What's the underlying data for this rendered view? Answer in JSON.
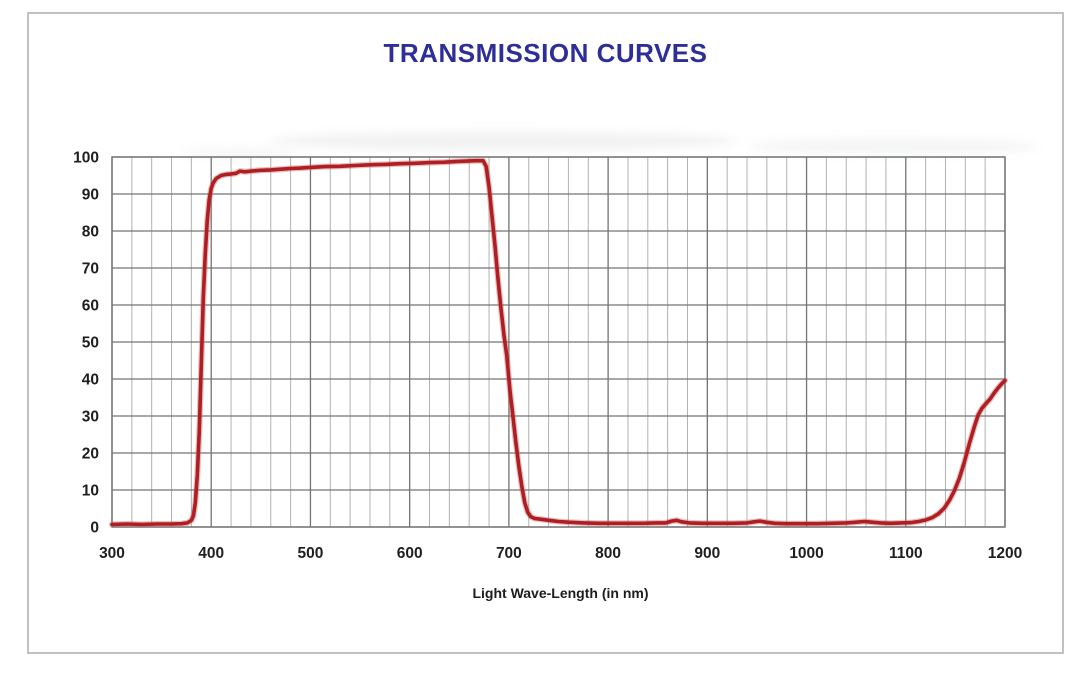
{
  "chart_data": {
    "type": "line",
    "title": "TRANSMISSION CURVES",
    "xlabel": "Light Wave-Length (in nm)",
    "ylabel": "",
    "xlim": [
      300,
      1200
    ],
    "ylim": [
      0,
      100
    ],
    "x_ticks": [
      300,
      400,
      500,
      600,
      700,
      800,
      900,
      1000,
      1100,
      1200
    ],
    "y_ticks": [
      0,
      10,
      20,
      30,
      40,
      50,
      60,
      70,
      80,
      90,
      100
    ],
    "x_minor_step": 20,
    "grid": "on",
    "legend": "none",
    "series": [
      {
        "name": "",
        "color": "#AF1E22",
        "points": [
          [
            300,
            0.7
          ],
          [
            315,
            0.8
          ],
          [
            330,
            0.7
          ],
          [
            345,
            0.8
          ],
          [
            360,
            0.8
          ],
          [
            370,
            0.9
          ],
          [
            376,
            1.1
          ],
          [
            380,
            1.8
          ],
          [
            382,
            3.0
          ],
          [
            384,
            6.5
          ],
          [
            386,
            14
          ],
          [
            388,
            26
          ],
          [
            390,
            44
          ],
          [
            392,
            62
          ],
          [
            394,
            74
          ],
          [
            396,
            83
          ],
          [
            398,
            88.5
          ],
          [
            400,
            91.5
          ],
          [
            402,
            93
          ],
          [
            405,
            94.2
          ],
          [
            410,
            95
          ],
          [
            415,
            95.3
          ],
          [
            420,
            95.4
          ],
          [
            425,
            95.6
          ],
          [
            429,
            96.2
          ],
          [
            434,
            96.0
          ],
          [
            440,
            96.2
          ],
          [
            450,
            96.4
          ],
          [
            460,
            96.5
          ],
          [
            470,
            96.7
          ],
          [
            480,
            96.9
          ],
          [
            490,
            97.0
          ],
          [
            500,
            97.2
          ],
          [
            515,
            97.4
          ],
          [
            530,
            97.5
          ],
          [
            545,
            97.7
          ],
          [
            560,
            97.9
          ],
          [
            575,
            98.0
          ],
          [
            590,
            98.2
          ],
          [
            605,
            98.3
          ],
          [
            620,
            98.5
          ],
          [
            635,
            98.6
          ],
          [
            648,
            98.8
          ],
          [
            658,
            98.9
          ],
          [
            666,
            99.0
          ],
          [
            672,
            99.0
          ],
          [
            674,
            99.0
          ],
          [
            677,
            97.5
          ],
          [
            680,
            92
          ],
          [
            683,
            84
          ],
          [
            686,
            76
          ],
          [
            689,
            67
          ],
          [
            692,
            59
          ],
          [
            695,
            52
          ],
          [
            698,
            46
          ],
          [
            701,
            37
          ],
          [
            704,
            30
          ],
          [
            707,
            23
          ],
          [
            710,
            16.5
          ],
          [
            713,
            11
          ],
          [
            716,
            6.5
          ],
          [
            719,
            4.0
          ],
          [
            722,
            2.8
          ],
          [
            726,
            2.3
          ],
          [
            732,
            2.1
          ],
          [
            740,
            1.8
          ],
          [
            750,
            1.5
          ],
          [
            760,
            1.3
          ],
          [
            775,
            1.1
          ],
          [
            790,
            1.0
          ],
          [
            805,
            1.0
          ],
          [
            820,
            1.0
          ],
          [
            835,
            1.0
          ],
          [
            848,
            1.1
          ],
          [
            858,
            1.1
          ],
          [
            864,
            1.6
          ],
          [
            869,
            1.8
          ],
          [
            874,
            1.4
          ],
          [
            882,
            1.1
          ],
          [
            895,
            1.0
          ],
          [
            910,
            1.0
          ],
          [
            925,
            1.0
          ],
          [
            940,
            1.1
          ],
          [
            947,
            1.4
          ],
          [
            953,
            1.6
          ],
          [
            959,
            1.3
          ],
          [
            968,
            1.0
          ],
          [
            980,
            0.9
          ],
          [
            995,
            0.9
          ],
          [
            1010,
            0.9
          ],
          [
            1025,
            1.0
          ],
          [
            1040,
            1.1
          ],
          [
            1050,
            1.3
          ],
          [
            1058,
            1.5
          ],
          [
            1066,
            1.3
          ],
          [
            1075,
            1.1
          ],
          [
            1085,
            1.0
          ],
          [
            1095,
            1.1
          ],
          [
            1105,
            1.2
          ],
          [
            1113,
            1.5
          ],
          [
            1120,
            1.9
          ],
          [
            1127,
            2.6
          ],
          [
            1133,
            3.6
          ],
          [
            1139,
            5.2
          ],
          [
            1144,
            7.2
          ],
          [
            1149,
            9.8
          ],
          [
            1154,
            13.2
          ],
          [
            1159,
            17.5
          ],
          [
            1164,
            22.5
          ],
          [
            1169,
            27
          ],
          [
            1173,
            30.3
          ],
          [
            1177,
            32.2
          ],
          [
            1181,
            33.4
          ],
          [
            1185,
            34.6
          ],
          [
            1189,
            36.2
          ],
          [
            1193,
            37.6
          ],
          [
            1197,
            38.8
          ],
          [
            1200,
            39.6
          ]
        ]
      }
    ]
  },
  "colors": {
    "title": "#2E2E99",
    "curve": "#AF1E22",
    "curve_halo": "#CF6D6D",
    "grid_major": "#737373",
    "grid_minor": "#B2B2B2",
    "axis_text": "#1E1E1E",
    "panel_border": "#C1C1C1"
  }
}
